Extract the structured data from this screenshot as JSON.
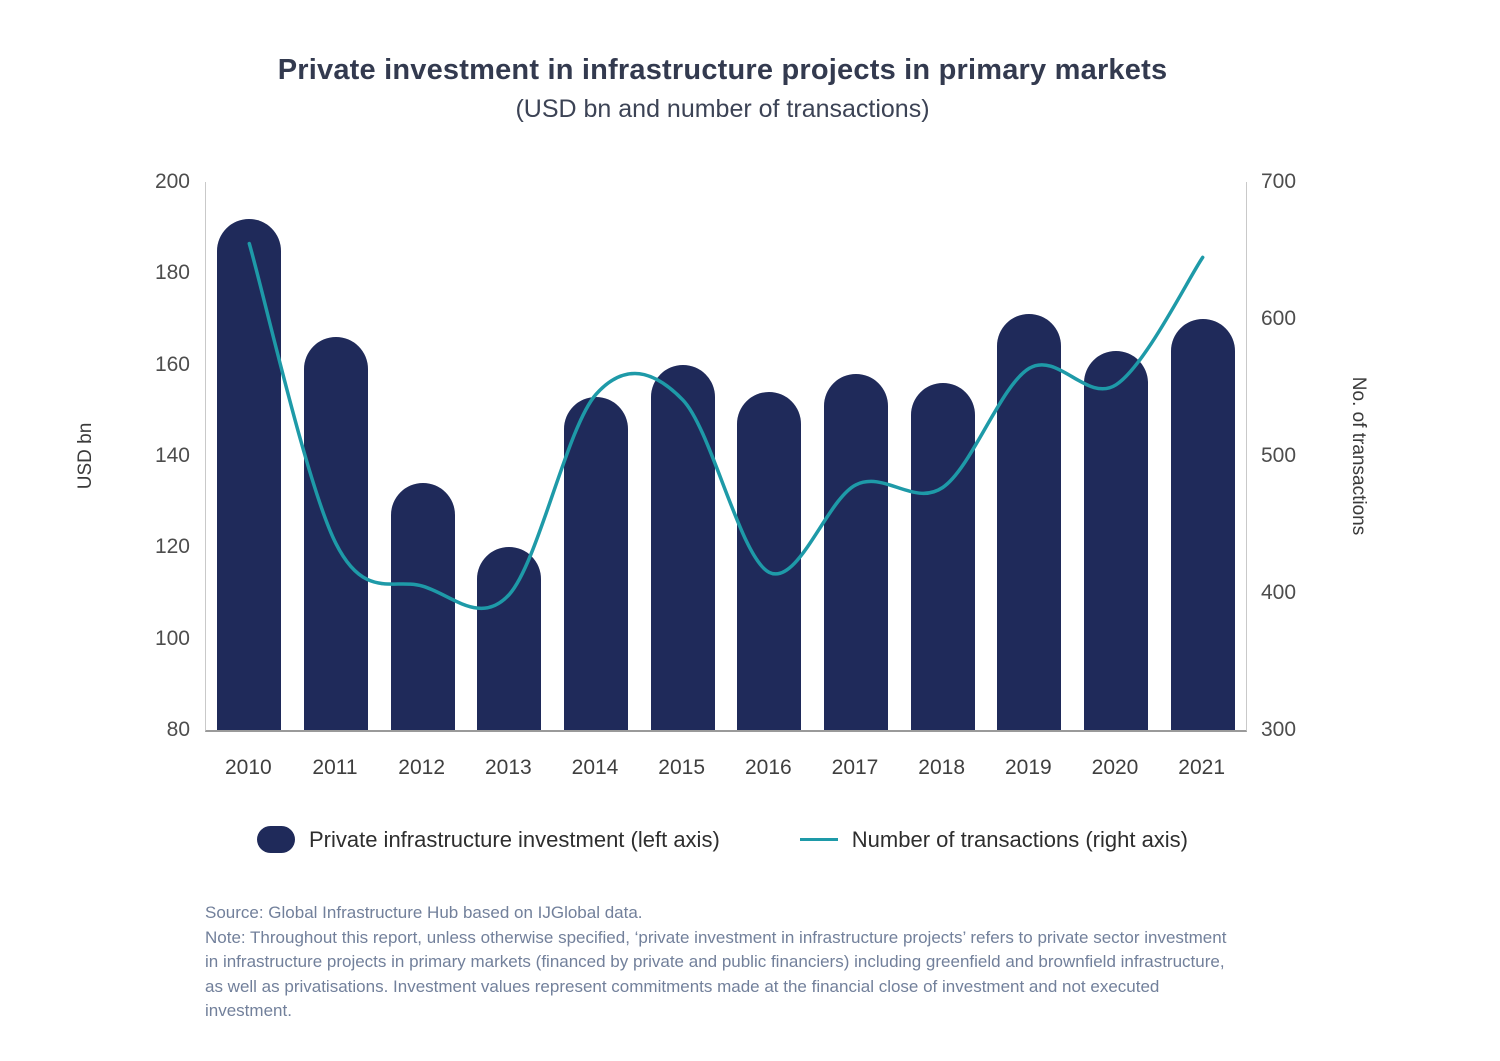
{
  "title": "Private investment in infrastructure projects in primary markets",
  "subtitle": "(USD bn and number of transactions)",
  "left_axis_title": "USD bn",
  "right_axis_title": "No. of transactions",
  "legend": {
    "bar_label": "Private infrastructure investment (left axis)",
    "line_label": "Number of transactions (right axis)"
  },
  "source": "Source: Global Infrastructure Hub based on IJGlobal data.",
  "note": "Note: Throughout this report, unless otherwise specified, ‘private investment in infrastructure projects’ refers to private sector investment in infrastructure projects in primary markets (financed by private and public financiers) including greenfield and brownfield infrastructure, as well as privatisations. Investment values represent commitments made at the financial close of investment and not executed investment.",
  "colors": {
    "bar": "#1f2a5a",
    "line": "#1e9aa8",
    "title_text": "#333a4f",
    "axis_text": "#4d4d4d",
    "note_text": "#72809b"
  },
  "chart_data": {
    "type": "bar",
    "combo": "bar+line",
    "title": "Private investment in infrastructure projects in primary markets",
    "subtitle": "(USD bn and number of transactions)",
    "categories": [
      "2010",
      "2011",
      "2012",
      "2013",
      "2014",
      "2015",
      "2016",
      "2017",
      "2018",
      "2019",
      "2020",
      "2021"
    ],
    "series": [
      {
        "name": "Private infrastructure investment (left axis)",
        "type": "bar",
        "axis": "left",
        "values": [
          192,
          166,
          134,
          120,
          153,
          160,
          154,
          158,
          156,
          171,
          163,
          170
        ]
      },
      {
        "name": "Number of transactions (right axis)",
        "type": "line",
        "axis": "right",
        "values": [
          655,
          436,
          405,
          399,
          545,
          541,
          415,
          479,
          477,
          564,
          552,
          645
        ]
      }
    ],
    "left_axis": {
      "label": "USD bn",
      "min": 80,
      "max": 200,
      "ticks": [
        80,
        100,
        120,
        140,
        160,
        180,
        200
      ]
    },
    "right_axis": {
      "label": "No. of transactions",
      "min": 300,
      "max": 700,
      "ticks": [
        300,
        400,
        500,
        600,
        700
      ]
    },
    "grid": false,
    "legend_position": "bottom"
  }
}
